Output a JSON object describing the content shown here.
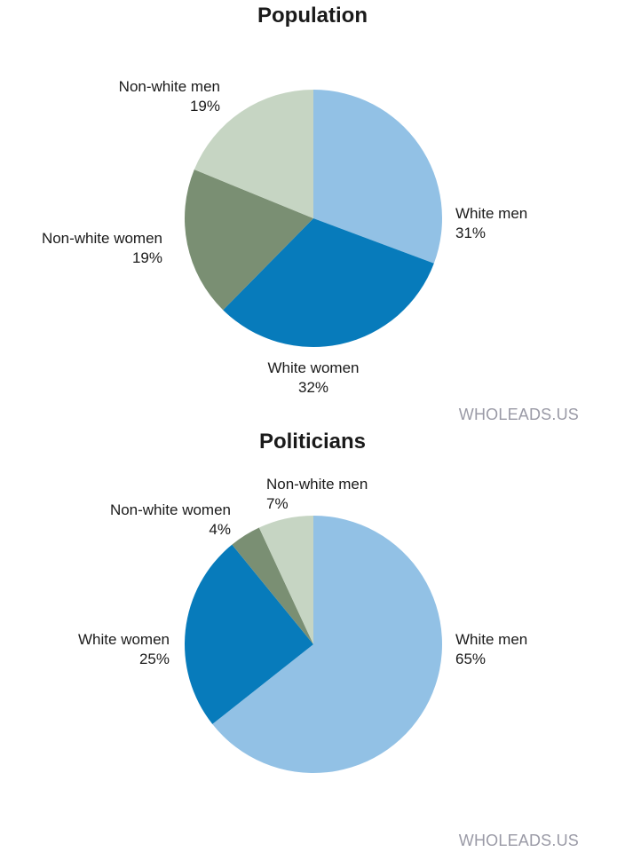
{
  "chart_data": [
    {
      "type": "pie",
      "title": "Population",
      "slices": [
        {
          "label": "White men",
          "value": 31,
          "value_label": "31%",
          "color": "#92c1e5"
        },
        {
          "label": "White women",
          "value": 32,
          "value_label": "32%",
          "color": "#077bbb"
        },
        {
          "label": "Non-white women",
          "value": 19,
          "value_label": "19%",
          "color": "#7a8f73"
        },
        {
          "label": "Non-white men",
          "value": 19,
          "value_label": "19%",
          "color": "#c6d5c3"
        }
      ],
      "start": "12 o'clock",
      "direction": "clockwise",
      "watermark": "WHOLEADS.US"
    },
    {
      "type": "pie",
      "title": "Politicians",
      "slices": [
        {
          "label": "White men",
          "value": 65,
          "value_label": "65%",
          "color": "#92c1e5"
        },
        {
          "label": "White women",
          "value": 25,
          "value_label": "25%",
          "color": "#077bbb"
        },
        {
          "label": "Non-white women",
          "value": 4,
          "value_label": "4%",
          "color": "#7a8f73"
        },
        {
          "label": "Non-white men",
          "value": 7,
          "value_label": "7%",
          "color": "#c6d5c3"
        }
      ],
      "start": "12 o'clock",
      "direction": "clockwise",
      "watermark": "WHOLEADS.US"
    }
  ]
}
